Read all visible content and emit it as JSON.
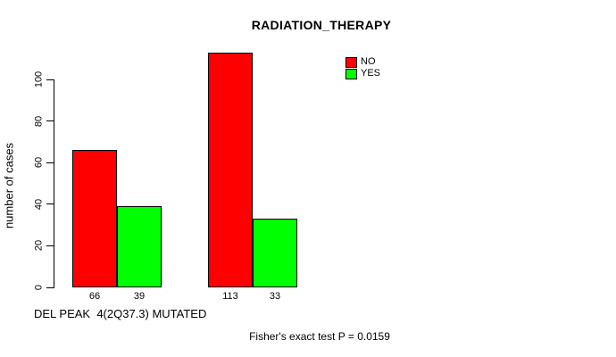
{
  "chart_data": {
    "type": "bar",
    "title": "RADIATION_THERAPY",
    "ylabel": "number of cases",
    "xlabel": "DEL PEAK  4(2Q37.3) MUTATED",
    "ylim": [
      0,
      100
    ],
    "yticks": [
      0,
      20,
      40,
      60,
      80,
      100
    ],
    "grid": false,
    "legend_position": "top-right",
    "series": [
      {
        "name": "NO",
        "color": "#ff0000",
        "values": [
          66,
          113
        ]
      },
      {
        "name": "YES",
        "color": "#00ff00",
        "values": [
          39,
          33
        ]
      }
    ],
    "bar_labels": [
      "66",
      "39",
      "113",
      "33"
    ],
    "annotation": "Fisher's exact test P = 0.0159",
    "colors": {
      "no": "#ff0000",
      "yes": "#00ff00",
      "axis": "#000000",
      "background": "#ffffff"
    }
  }
}
